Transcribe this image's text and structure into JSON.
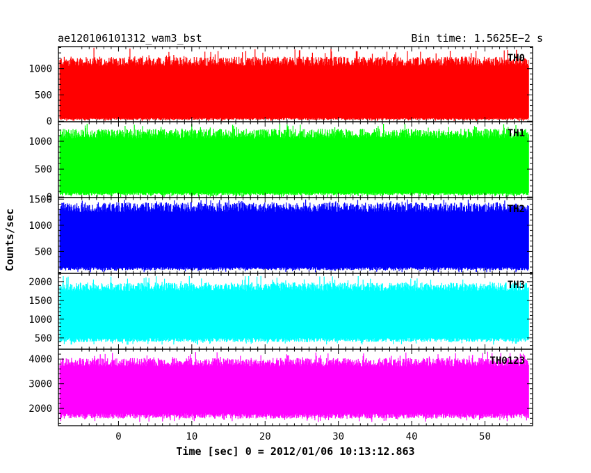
{
  "chart_data": {
    "type": "line",
    "title": "ae120106101312_wam3_bst",
    "bin_time": "Bin time: 1.5625E−2 s",
    "xlabel": "Time [sec] 0 = 2012/01/06 10:13:12.863",
    "ylabel": "Counts/sec",
    "xlim": [
      -8.2,
      56.5
    ],
    "data_range": [
      -8.0,
      56.0
    ],
    "x_ticks": [
      "0",
      "10",
      "20",
      "30",
      "40",
      "50"
    ],
    "x_tick_values": [
      0,
      10,
      20,
      30,
      40,
      50
    ],
    "panels": [
      {
        "name": "TH0",
        "color": "#ff0000",
        "ylim": [
          -10,
          1420
        ],
        "yticks": [
          0,
          500,
          1000
        ],
        "ytick_labels": [
          "0",
          "500",
          "1000"
        ],
        "band_low": 60,
        "band_high": 1050,
        "peak_high": 1400,
        "dip_low": 0
      },
      {
        "name": "TH1",
        "color": "#00ff00",
        "ylim": [
          -10,
          1350
        ],
        "yticks": [
          0,
          500,
          1000
        ],
        "ytick_labels": [
          "0",
          "500",
          "1000"
        ],
        "band_low": 80,
        "band_high": 1050,
        "peak_high": 1320,
        "dip_low": 0
      },
      {
        "name": "TH2",
        "color": "#0000ff",
        "ylim": [
          80,
          1530
        ],
        "yticks": [
          500,
          1000,
          1500
        ],
        "ytick_labels": [
          "500",
          "1000",
          "1500"
        ],
        "band_low": 200,
        "band_high": 1250,
        "peak_high": 1500,
        "dip_low": 100
      },
      {
        "name": "TH3",
        "color": "#00ffff",
        "ylim": [
          200,
          2220
        ],
        "yticks": [
          500,
          1000,
          1500,
          2000
        ],
        "ytick_labels": [
          "500",
          "1000",
          "1500",
          "2000"
        ],
        "band_low": 500,
        "band_high": 1750,
        "peak_high": 2150,
        "dip_low": 320
      },
      {
        "name": "TH0123",
        "color": "#ff00ff",
        "ylim": [
          1300,
          4400
        ],
        "yticks": [
          2000,
          3000,
          4000
        ],
        "ytick_labels": [
          "2000",
          "3000",
          "4000"
        ],
        "band_low": 1800,
        "band_high": 3700,
        "peak_high": 4300,
        "dip_low": 1450
      }
    ]
  }
}
